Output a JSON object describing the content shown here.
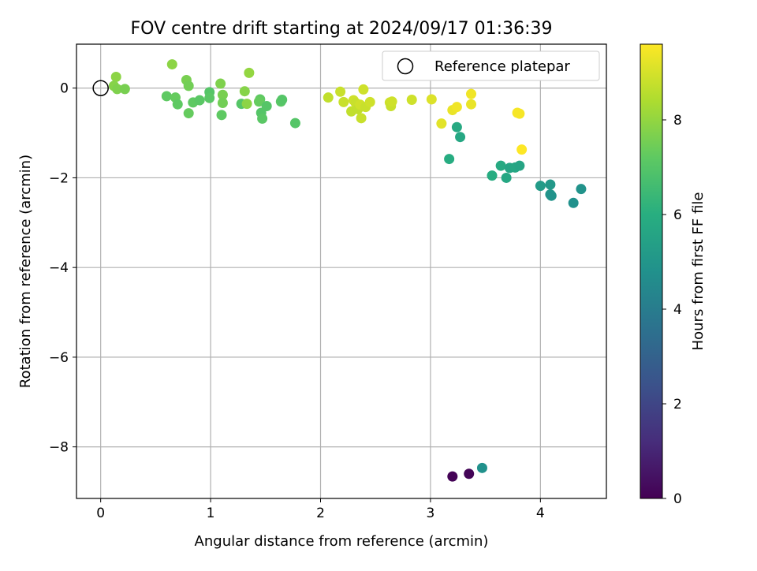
{
  "chart_data": {
    "type": "scatter",
    "title": "FOV centre drift starting at 2024/09/17 01:36:39",
    "xlabel": "Angular distance from reference (arcmin)",
    "ylabel": "Rotation from reference (arcmin)",
    "xlim": [
      -0.22,
      4.6
    ],
    "ylim": [
      -9.15,
      0.98
    ],
    "xticks": [
      0,
      1,
      2,
      3,
      4
    ],
    "xtick_labels": [
      "0",
      "1",
      "2",
      "3",
      "4"
    ],
    "yticks": [
      0,
      -2,
      -4,
      -6,
      -8
    ],
    "ytick_labels": [
      "0",
      "−2",
      "−4",
      "−6",
      "−8"
    ],
    "grid": true,
    "legend": {
      "placement": "top-right",
      "entries": [
        {
          "label": "Reference platepar",
          "marker": "open-circle"
        }
      ]
    },
    "reference_point": {
      "x": 0,
      "y": 0
    },
    "colorbar": {
      "label": "Hours from first FF file",
      "colormap": "viridis",
      "range": [
        0,
        9.6
      ],
      "ticks": [
        0,
        2,
        4,
        6,
        8
      ],
      "tick_labels": [
        "0",
        "2",
        "4",
        "6",
        "8"
      ]
    },
    "points": [
      {
        "x": 3.2,
        "y": -8.66,
        "c": 0.05
      },
      {
        "x": 3.35,
        "y": -8.6,
        "c": 0.1
      },
      {
        "x": 3.47,
        "y": -8.47,
        "c": 4.8
      },
      {
        "x": 3.17,
        "y": -1.58,
        "c": 5.9
      },
      {
        "x": 3.24,
        "y": -0.87,
        "c": 5.8
      },
      {
        "x": 3.27,
        "y": -1.09,
        "c": 5.7
      },
      {
        "x": 3.56,
        "y": -1.95,
        "c": 5.9
      },
      {
        "x": 3.64,
        "y": -1.73,
        "c": 5.8
      },
      {
        "x": 3.69,
        "y": -2.0,
        "c": 5.7
      },
      {
        "x": 3.72,
        "y": -1.78,
        "c": 5.6
      },
      {
        "x": 3.77,
        "y": -1.77,
        "c": 5.7
      },
      {
        "x": 3.81,
        "y": -1.73,
        "c": 5.6
      },
      {
        "x": 4.0,
        "y": -2.18,
        "c": 5.2
      },
      {
        "x": 4.09,
        "y": -2.15,
        "c": 5.1
      },
      {
        "x": 4.09,
        "y": -2.37,
        "c": 5.0
      },
      {
        "x": 4.1,
        "y": -2.4,
        "c": 4.9
      },
      {
        "x": 4.3,
        "y": -2.56,
        "c": 4.8
      },
      {
        "x": 4.37,
        "y": -2.25,
        "c": 4.9
      },
      {
        "x": 0.14,
        "y": 0.25,
        "c": 7.9
      },
      {
        "x": 0.12,
        "y": 0.05,
        "c": 7.8
      },
      {
        "x": 0.15,
        "y": -0.02,
        "c": 7.7
      },
      {
        "x": 0.22,
        "y": -0.02,
        "c": 7.6
      },
      {
        "x": 0.65,
        "y": 0.53,
        "c": 7.9
      },
      {
        "x": 0.6,
        "y": -0.18,
        "c": 7.2
      },
      {
        "x": 0.68,
        "y": -0.21,
        "c": 7.3
      },
      {
        "x": 0.7,
        "y": -0.36,
        "c": 7.2
      },
      {
        "x": 0.78,
        "y": 0.18,
        "c": 7.6
      },
      {
        "x": 0.8,
        "y": 0.05,
        "c": 7.5
      },
      {
        "x": 0.8,
        "y": -0.56,
        "c": 7.3
      },
      {
        "x": 0.84,
        "y": -0.32,
        "c": 7.2
      },
      {
        "x": 0.9,
        "y": -0.27,
        "c": 7.1
      },
      {
        "x": 0.99,
        "y": -0.09,
        "c": 7.0
      },
      {
        "x": 0.99,
        "y": -0.22,
        "c": 7.1
      },
      {
        "x": 1.09,
        "y": 0.1,
        "c": 7.7
      },
      {
        "x": 1.11,
        "y": -0.15,
        "c": 7.6
      },
      {
        "x": 1.11,
        "y": -0.33,
        "c": 7.5
      },
      {
        "x": 1.1,
        "y": -0.6,
        "c": 7.2
      },
      {
        "x": 1.28,
        "y": -0.35,
        "c": 7.0
      },
      {
        "x": 1.31,
        "y": -0.07,
        "c": 7.8
      },
      {
        "x": 1.33,
        "y": -0.35,
        "c": 7.9
      },
      {
        "x": 1.35,
        "y": 0.34,
        "c": 8.0
      },
      {
        "x": 1.45,
        "y": -0.25,
        "c": 7.2
      },
      {
        "x": 1.44,
        "y": -0.3,
        "c": 7.3
      },
      {
        "x": 1.46,
        "y": -0.55,
        "c": 7.0
      },
      {
        "x": 1.47,
        "y": -0.68,
        "c": 7.1
      },
      {
        "x": 1.51,
        "y": -0.4,
        "c": 7.0
      },
      {
        "x": 1.64,
        "y": -0.3,
        "c": 7.1
      },
      {
        "x": 1.65,
        "y": -0.26,
        "c": 7.0
      },
      {
        "x": 1.77,
        "y": -0.78,
        "c": 7.0
      },
      {
        "x": 2.07,
        "y": -0.21,
        "c": 8.7
      },
      {
        "x": 2.18,
        "y": -0.08,
        "c": 8.8
      },
      {
        "x": 2.21,
        "y": -0.31,
        "c": 8.8
      },
      {
        "x": 2.28,
        "y": -0.52,
        "c": 8.7
      },
      {
        "x": 2.3,
        "y": -0.27,
        "c": 8.9
      },
      {
        "x": 2.32,
        "y": -0.33,
        "c": 8.8
      },
      {
        "x": 2.34,
        "y": -0.47,
        "c": 8.7
      },
      {
        "x": 2.36,
        "y": -0.37,
        "c": 8.9
      },
      {
        "x": 2.37,
        "y": -0.67,
        "c": 8.8
      },
      {
        "x": 2.39,
        "y": -0.03,
        "c": 8.9
      },
      {
        "x": 2.41,
        "y": -0.42,
        "c": 8.8
      },
      {
        "x": 2.45,
        "y": -0.31,
        "c": 8.9
      },
      {
        "x": 2.63,
        "y": -0.32,
        "c": 8.9
      },
      {
        "x": 2.64,
        "y": -0.4,
        "c": 8.8
      },
      {
        "x": 2.65,
        "y": -0.3,
        "c": 8.9
      },
      {
        "x": 2.83,
        "y": -0.26,
        "c": 8.9
      },
      {
        "x": 3.01,
        "y": -0.25,
        "c": 9.1
      },
      {
        "x": 3.1,
        "y": -0.79,
        "c": 9.2
      },
      {
        "x": 3.2,
        "y": -0.49,
        "c": 9.3
      },
      {
        "x": 3.24,
        "y": -0.42,
        "c": 9.4
      },
      {
        "x": 3.37,
        "y": -0.13,
        "c": 9.4
      },
      {
        "x": 3.37,
        "y": -0.36,
        "c": 9.3
      },
      {
        "x": 3.79,
        "y": -0.55,
        "c": 9.5
      },
      {
        "x": 3.81,
        "y": -0.57,
        "c": 9.5
      },
      {
        "x": 3.83,
        "y": -1.37,
        "c": 9.6
      }
    ]
  }
}
